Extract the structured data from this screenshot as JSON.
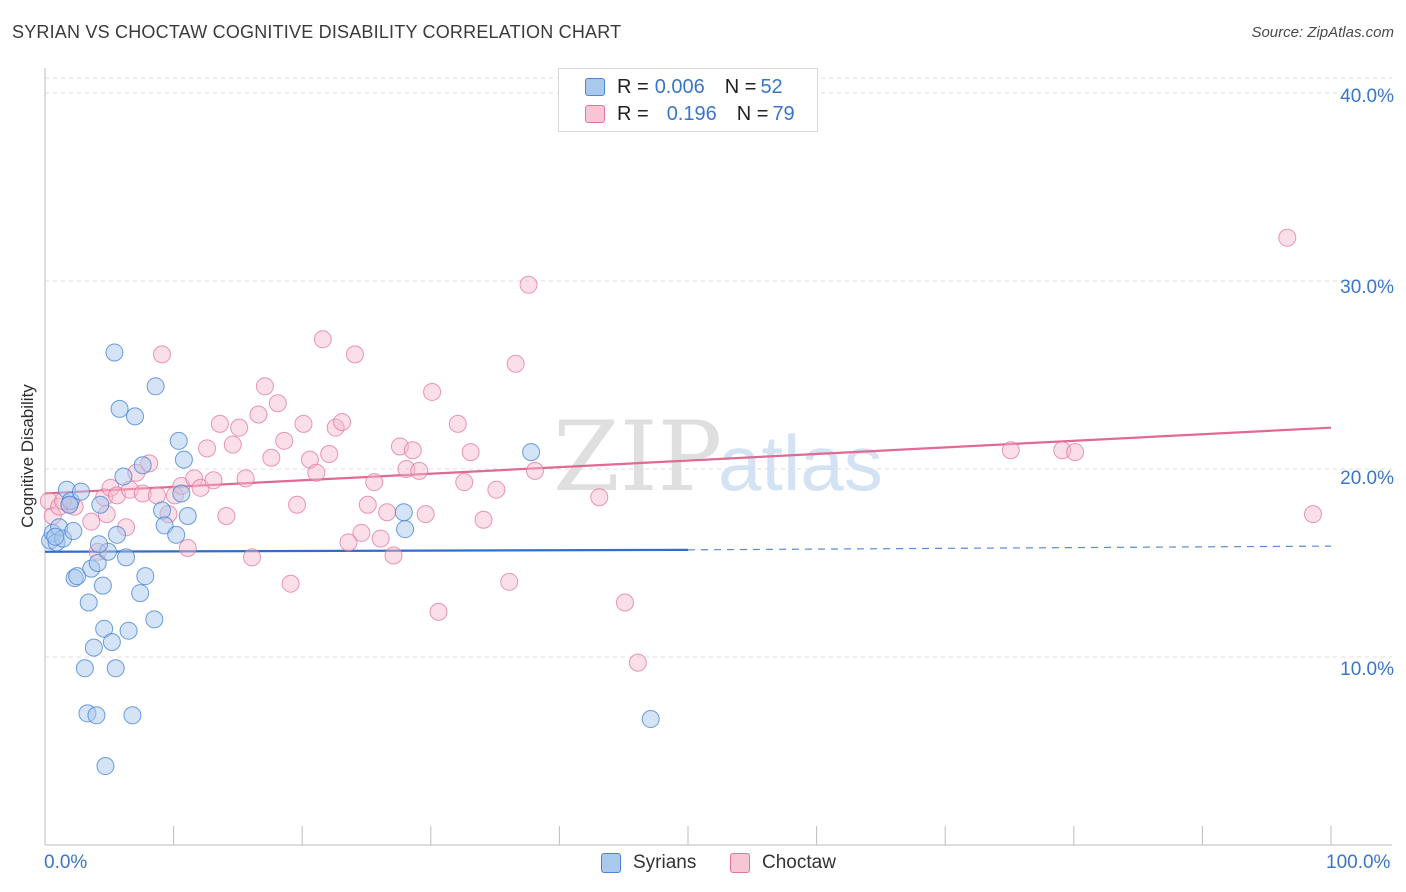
{
  "title": "SYRIAN VS CHOCTAW COGNITIVE DISABILITY CORRELATION CHART",
  "source": "Source: ZipAtlas.com",
  "watermark": {
    "zip": "ZIP",
    "atlas": "atlas"
  },
  "legend_top": {
    "rows": [
      {
        "r_label": "R = ",
        "r_value": "0.006",
        "n_label": "N = ",
        "n_value": "52"
      },
      {
        "r_label": "R = ",
        "r_value": "0.196",
        "n_label": "N = ",
        "n_value": "79"
      }
    ]
  },
  "legend_bottom": {
    "syrians": "Syrians",
    "choctaw": "Choctaw"
  },
  "colors": {
    "syrians_fill": "#a9c8ee",
    "syrians_stroke": "#4a86d4",
    "syrians_line": "#2f6fc9",
    "choctaw_fill": "#f6b8cb",
    "choctaw_stroke": "#e2769a",
    "choctaw_line": "#e06a92",
    "tick_text": "#3a76c8"
  },
  "chart_data": {
    "type": "scatter",
    "title": "SYRIAN VS CHOCTAW COGNITIVE DISABILITY CORRELATION CHART",
    "xlabel": "",
    "ylabel": "Cognitive Disability",
    "xlim": [
      0,
      100
    ],
    "ylim": [
      0,
      40.8
    ],
    "x_tick_labels": [
      "0.0%",
      "100.0%"
    ],
    "y_ticks": [
      10,
      20,
      30,
      40
    ],
    "y_tick_labels": [
      "10.0%",
      "20.0%",
      "30.0%",
      "40.0%"
    ],
    "grid": true,
    "series": [
      {
        "name": "Syrians",
        "r": 0.006,
        "n": 52,
        "trend": {
          "x0": 0,
          "y0": 15.6,
          "x1": 50,
          "y1": 15.7,
          "dashed_to": 100,
          "dashed_y": 15.9
        },
        "points": [
          [
            0.4,
            16.2
          ],
          [
            0.6,
            16.6
          ],
          [
            0.9,
            16.1
          ],
          [
            1.1,
            16.9
          ],
          [
            1.4,
            16.3
          ],
          [
            1.7,
            18.9
          ],
          [
            2.0,
            18.3
          ],
          [
            2.2,
            16.7
          ],
          [
            2.3,
            14.2
          ],
          [
            2.5,
            14.3
          ],
          [
            2.8,
            18.8
          ],
          [
            3.1,
            9.4
          ],
          [
            3.3,
            7.0
          ],
          [
            3.4,
            12.9
          ],
          [
            3.6,
            14.7
          ],
          [
            3.8,
            10.5
          ],
          [
            4.0,
            6.9
          ],
          [
            4.1,
            15.0
          ],
          [
            4.3,
            18.1
          ],
          [
            4.5,
            13.8
          ],
          [
            4.6,
            11.5
          ],
          [
            4.7,
            4.2
          ],
          [
            4.9,
            15.6
          ],
          [
            5.2,
            10.8
          ],
          [
            5.4,
            26.2
          ],
          [
            5.5,
            9.4
          ],
          [
            5.6,
            16.5
          ],
          [
            5.8,
            23.2
          ],
          [
            6.1,
            19.6
          ],
          [
            6.3,
            15.3
          ],
          [
            6.5,
            11.4
          ],
          [
            6.8,
            6.9
          ],
          [
            7.0,
            22.8
          ],
          [
            7.4,
            13.4
          ],
          [
            7.6,
            20.2
          ],
          [
            7.8,
            14.3
          ],
          [
            8.5,
            12.0
          ],
          [
            8.6,
            24.4
          ],
          [
            9.1,
            17.8
          ],
          [
            9.3,
            17.0
          ],
          [
            10.2,
            16.5
          ],
          [
            10.4,
            21.5
          ],
          [
            10.6,
            18.7
          ],
          [
            10.8,
            20.5
          ],
          [
            11.1,
            17.5
          ],
          [
            27.9,
            17.7
          ],
          [
            28.0,
            16.8
          ],
          [
            37.8,
            20.9
          ],
          [
            47.1,
            6.7
          ],
          [
            1.9,
            18.1
          ],
          [
            0.8,
            16.4
          ],
          [
            4.2,
            16.0
          ]
        ]
      },
      {
        "name": "Choctaw",
        "r": 0.196,
        "n": 79,
        "trend": {
          "x0": 0,
          "y0": 18.7,
          "x1": 100,
          "y1": 22.2
        },
        "points": [
          [
            0.3,
            18.3
          ],
          [
            0.6,
            17.5
          ],
          [
            1.1,
            18.0
          ],
          [
            1.9,
            18.1
          ],
          [
            2.3,
            18.0
          ],
          [
            3.6,
            17.2
          ],
          [
            4.1,
            15.6
          ],
          [
            4.6,
            18.5
          ],
          [
            4.8,
            17.6
          ],
          [
            5.1,
            19.0
          ],
          [
            5.6,
            18.6
          ],
          [
            6.3,
            16.9
          ],
          [
            6.6,
            18.9
          ],
          [
            7.1,
            19.8
          ],
          [
            7.6,
            18.7
          ],
          [
            8.1,
            20.3
          ],
          [
            8.7,
            18.6
          ],
          [
            9.1,
            26.1
          ],
          [
            9.6,
            17.6
          ],
          [
            10.1,
            18.6
          ],
          [
            10.6,
            19.1
          ],
          [
            11.1,
            15.8
          ],
          [
            11.6,
            19.5
          ],
          [
            12.1,
            19.0
          ],
          [
            12.6,
            21.1
          ],
          [
            13.1,
            19.4
          ],
          [
            13.6,
            22.4
          ],
          [
            14.1,
            17.5
          ],
          [
            14.6,
            21.3
          ],
          [
            15.1,
            22.2
          ],
          [
            15.6,
            19.5
          ],
          [
            16.1,
            15.3
          ],
          [
            16.6,
            22.9
          ],
          [
            17.1,
            24.4
          ],
          [
            17.6,
            20.6
          ],
          [
            18.1,
            23.5
          ],
          [
            18.6,
            21.5
          ],
          [
            19.1,
            13.9
          ],
          [
            19.6,
            18.1
          ],
          [
            20.1,
            22.4
          ],
          [
            20.6,
            20.5
          ],
          [
            21.1,
            19.8
          ],
          [
            21.6,
            26.9
          ],
          [
            22.1,
            20.8
          ],
          [
            22.6,
            22.2
          ],
          [
            23.1,
            22.5
          ],
          [
            23.6,
            16.1
          ],
          [
            24.1,
            26.1
          ],
          [
            24.6,
            16.6
          ],
          [
            25.1,
            18.1
          ],
          [
            25.6,
            19.3
          ],
          [
            26.1,
            16.3
          ],
          [
            26.6,
            17.7
          ],
          [
            27.1,
            15.4
          ],
          [
            27.6,
            21.2
          ],
          [
            28.1,
            20.0
          ],
          [
            28.6,
            21.0
          ],
          [
            29.1,
            19.9
          ],
          [
            29.6,
            17.6
          ],
          [
            30.1,
            24.1
          ],
          [
            30.6,
            12.4
          ],
          [
            32.1,
            22.4
          ],
          [
            32.6,
            19.3
          ],
          [
            33.1,
            20.9
          ],
          [
            34.1,
            17.3
          ],
          [
            35.1,
            18.9
          ],
          [
            36.1,
            14.0
          ],
          [
            36.6,
            25.6
          ],
          [
            37.6,
            29.8
          ],
          [
            38.1,
            19.9
          ],
          [
            43.1,
            18.5
          ],
          [
            45.1,
            12.9
          ],
          [
            46.1,
            9.7
          ],
          [
            75.1,
            21.0
          ],
          [
            79.1,
            21.0
          ],
          [
            80.1,
            20.9
          ],
          [
            96.6,
            32.3
          ],
          [
            98.6,
            17.6
          ],
          [
            1.4,
            18.3
          ]
        ]
      }
    ]
  }
}
